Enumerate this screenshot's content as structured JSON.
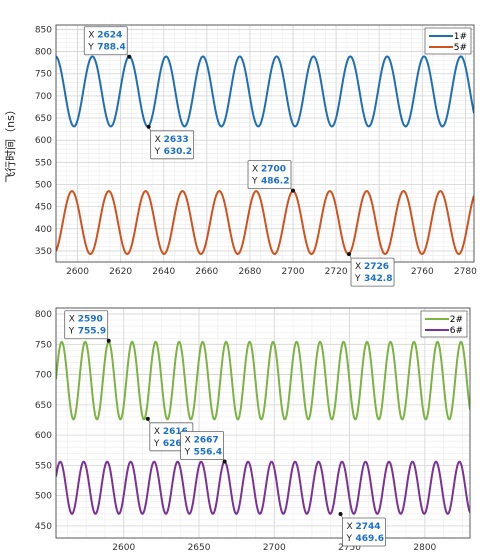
{
  "chart_data": [
    {
      "type": "line",
      "ylabel": "飞行时间（ns）",
      "xlim": [
        2590,
        2784
      ],
      "ylim": [
        325,
        860
      ],
      "xticks": [
        2600,
        2620,
        2640,
        2660,
        2680,
        2700,
        2720,
        2740,
        2760,
        2780
      ],
      "yticks": [
        350,
        400,
        450,
        500,
        550,
        600,
        650,
        700,
        750,
        800,
        850
      ],
      "grid": true,
      "legend_position": "top-right",
      "series": [
        {
          "name": "1#",
          "color": "#1f6fb5",
          "center": 710,
          "amplitude": 79,
          "period": 17.1,
          "peak_x": 2624
        },
        {
          "name": "5#",
          "color": "#d0531f",
          "center": 414,
          "amplitude": 71,
          "period": 17.1,
          "peak_x": 2700
        }
      ],
      "datatips": [
        {
          "x": "2624",
          "y": "788.4",
          "xv": 2624,
          "yv": 788.4,
          "placement": "above-left"
        },
        {
          "x": "2633",
          "y": "630.2",
          "xv": 2633,
          "yv": 630.2,
          "placement": "below-right"
        },
        {
          "x": "2700",
          "y": "486.2",
          "xv": 2700,
          "yv": 486.2,
          "placement": "above-left"
        },
        {
          "x": "2726",
          "y": "342.8",
          "xv": 2726,
          "yv": 342.8,
          "placement": "below-right"
        }
      ]
    },
    {
      "type": "line",
      "xlim": [
        2555,
        2830
      ],
      "ylim": [
        430,
        810
      ],
      "xticks": [
        2600,
        2650,
        2700,
        2750,
        2800
      ],
      "yticks": [
        450,
        500,
        550,
        600,
        650,
        700,
        750,
        800
      ],
      "grid": true,
      "legend_position": "top-right",
      "series": [
        {
          "name": "2#",
          "color": "#7cb342",
          "center": 690,
          "amplitude": 64,
          "period": 15.6,
          "peak_x": 2590
        },
        {
          "name": "6#",
          "color": "#7b3294",
          "center": 513,
          "amplitude": 43,
          "period": 15.6,
          "peak_x": 2667
        }
      ],
      "datatips": [
        {
          "x": "2590",
          "y": "755.9",
          "xv": 2590,
          "yv": 755.9,
          "placement": "above-right"
        },
        {
          "x": "2616",
          "y": "626.9",
          "xv": 2616,
          "yv": 626.9,
          "placement": "below-right"
        },
        {
          "x": "2667",
          "y": "556.4",
          "xv": 2667,
          "yv": 556.4,
          "placement": "above-right"
        },
        {
          "x": "2744",
          "y": "469.6",
          "xv": 2744,
          "yv": 469.6,
          "placement": "below-right"
        }
      ]
    }
  ]
}
